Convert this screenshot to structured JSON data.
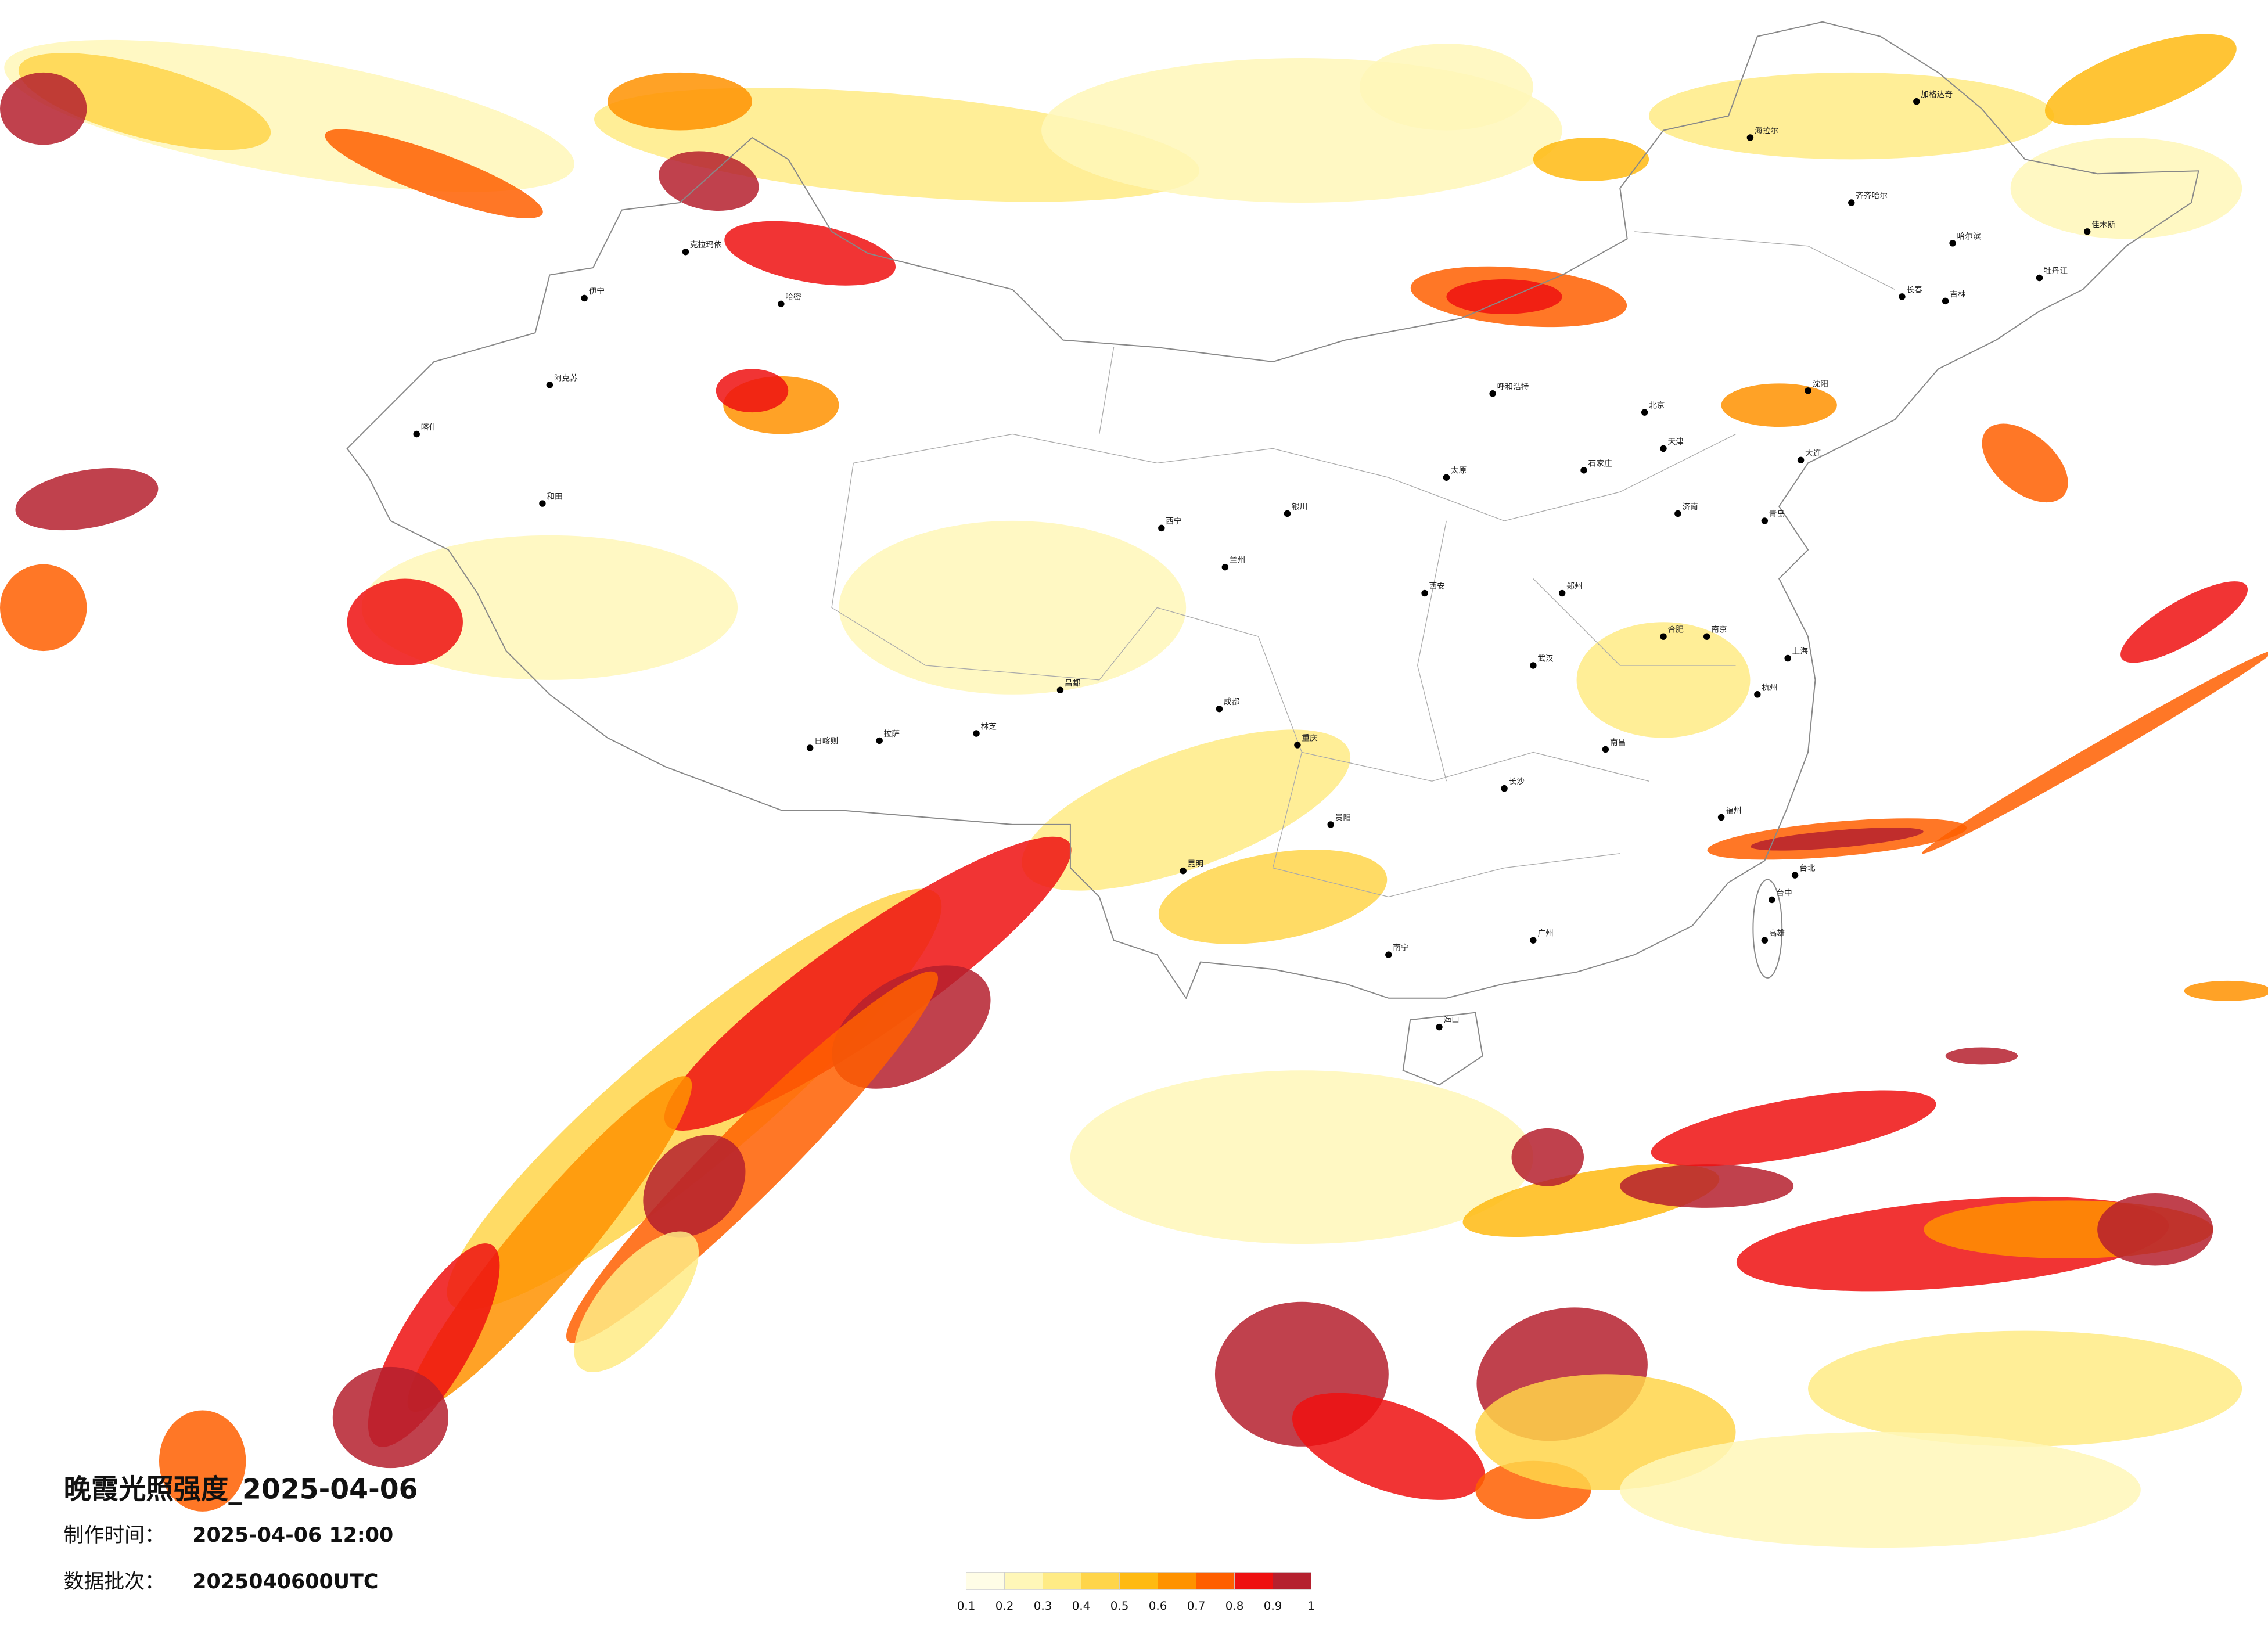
{
  "map": {
    "title": "晚霞光照强度_2025-04-06",
    "made_label": "制作时间：",
    "made_time": "2025-04-06 12:00",
    "batch_label": "数据批次：",
    "batch": "2025040600UTC",
    "colorbar": {
      "colors": [
        "#fffde6",
        "#fff7b8",
        "#ffeb85",
        "#ffd54a",
        "#ffba12",
        "#ff9200",
        "#ff5f00",
        "#ee1010",
        "#b5202e"
      ],
      "ticks": [
        0.1,
        0.2,
        0.3,
        0.4,
        0.5,
        0.6,
        0.7,
        0.8,
        0.9,
        1
      ]
    },
    "cities": [
      "喀什",
      "和田",
      "阿克苏",
      "克拉玛依",
      "伊宁",
      "哈密",
      "拉萨",
      "日喀则",
      "林芝",
      "昌都",
      "西宁",
      "兰州",
      "银川",
      "呼和浩特",
      "海拉尔",
      "加格达奇",
      "齐齐哈尔",
      "哈尔滨",
      "长春",
      "吉林",
      "佳木斯",
      "牡丹江",
      "北京",
      "天津",
      "石家庄",
      "太原",
      "济南",
      "郑州",
      "西安",
      "成都",
      "重庆",
      "武汉",
      "长沙",
      "南昌",
      "南京",
      "上海",
      "杭州",
      "福州",
      "广州",
      "南宁",
      "贵阳",
      "昆明",
      "海口",
      "台北",
      "台中",
      "高雄",
      "大连",
      "沈阳",
      "青岛",
      "合肥"
    ]
  }
}
